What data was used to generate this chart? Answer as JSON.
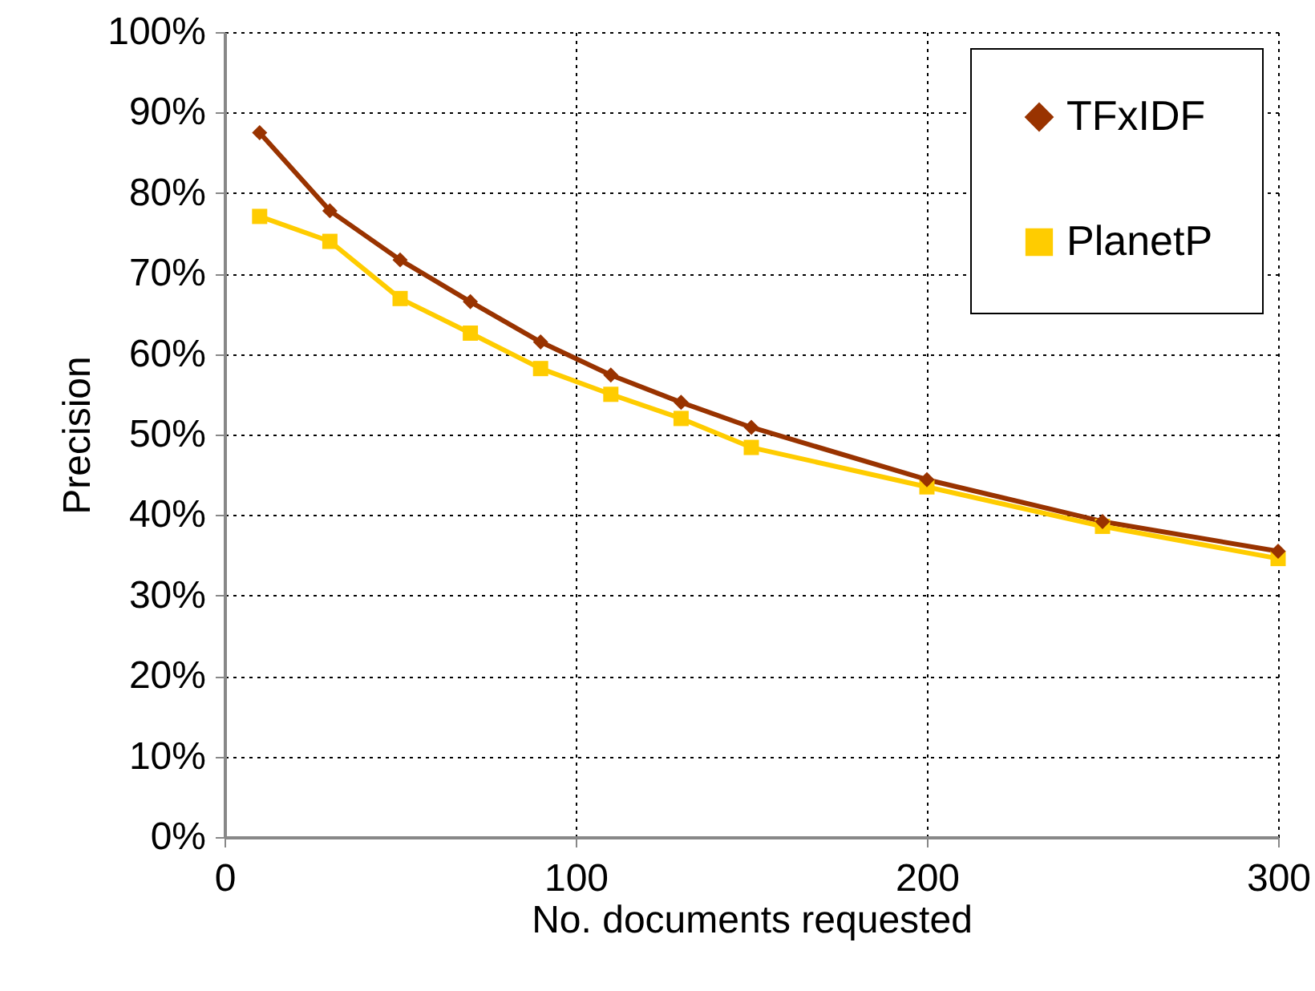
{
  "chart_data": {
    "type": "line",
    "xlabel": "No. documents requested",
    "ylabel": "Precision",
    "x": [
      10,
      30,
      50,
      70,
      90,
      110,
      130,
      150,
      200,
      250,
      300
    ],
    "series": [
      {
        "name": "TFxIDF",
        "color": "#993300",
        "marker": "diamond",
        "values": [
          87.5,
          77.8,
          71.7,
          66.5,
          61.5,
          57.4,
          54.0,
          50.9,
          44.4,
          39.2,
          35.5
        ]
      },
      {
        "name": "PlanetP",
        "color": "#ffcc00",
        "marker": "square",
        "values": [
          77.1,
          74.0,
          66.9,
          62.6,
          58.2,
          55.0,
          52.0,
          48.4,
          43.5,
          38.6,
          34.6
        ]
      }
    ],
    "xlim": [
      0,
      300
    ],
    "xticks": [
      0,
      100,
      200,
      300
    ],
    "ylim": [
      0,
      100
    ],
    "yticks": [
      {
        "value": 0,
        "label": "0%"
      },
      {
        "value": 10,
        "label": "10%"
      },
      {
        "value": 20,
        "label": "20%"
      },
      {
        "value": 30,
        "label": "30%"
      },
      {
        "value": 40,
        "label": "40%"
      },
      {
        "value": 50,
        "label": "50%"
      },
      {
        "value": 60,
        "label": "60%"
      },
      {
        "value": 70,
        "label": "70%"
      },
      {
        "value": 80,
        "label": "80%"
      },
      {
        "value": 90,
        "label": "90%"
      },
      {
        "value": 100,
        "label": "100%"
      }
    ],
    "grid": true,
    "legend": "top right",
    "line_style": "solid"
  }
}
